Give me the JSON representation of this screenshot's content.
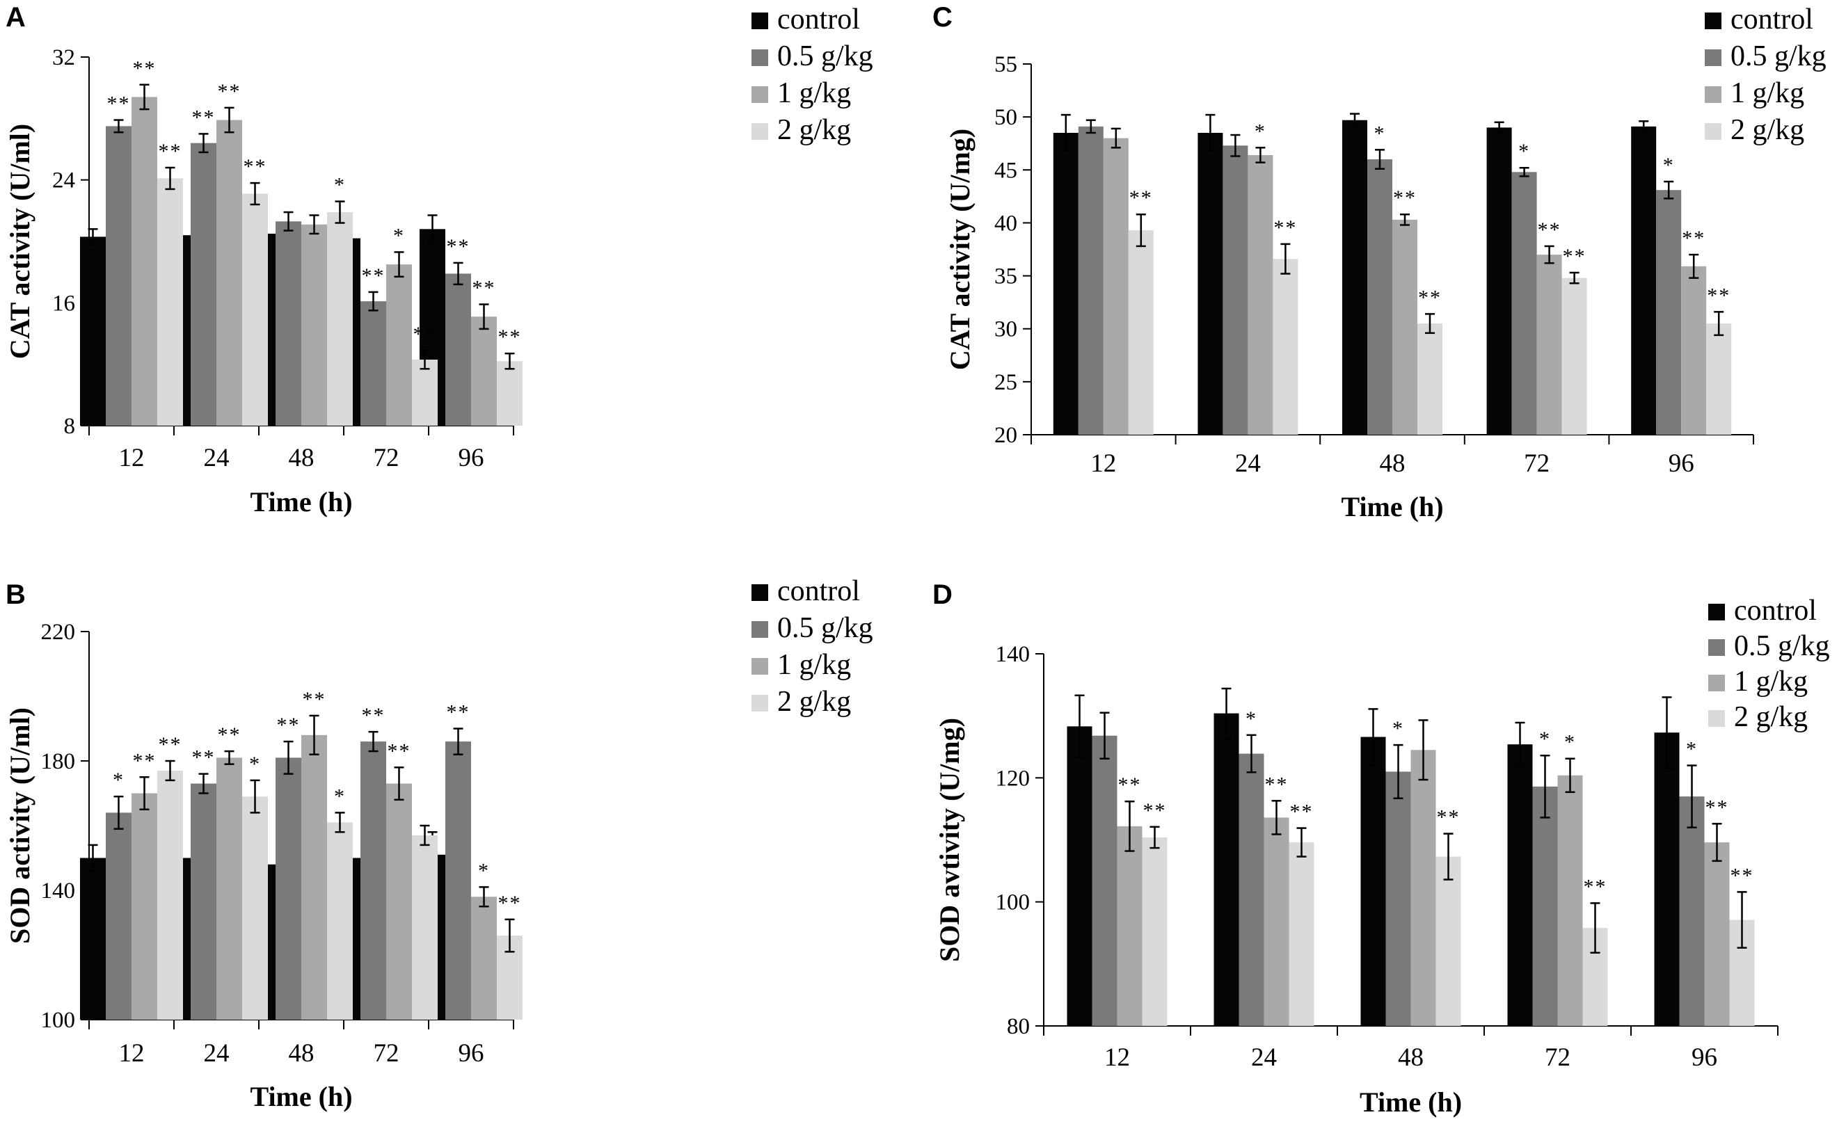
{
  "figure": {
    "colors": [
      "#050505",
      "#7a7a7a",
      "#a9a9a9",
      "#dadada"
    ],
    "legend": [
      "control",
      "0.5 g/kg",
      "1 g/kg",
      "2 g/kg"
    ]
  },
  "chart_data": [
    {
      "id": "A",
      "type": "bar",
      "title": "",
      "letter": "A",
      "xlabel": "Time (h)",
      "ylabel": "CAT activity (U/ml)",
      "ylim": [
        8,
        32
      ],
      "yticks": [
        8,
        16,
        24,
        32
      ],
      "categories": [
        "12",
        "24",
        "48",
        "72",
        "96"
      ],
      "legend_position": "top-right",
      "series": [
        {
          "name": "control",
          "values": [
            20.3,
            20.4,
            20.5,
            20.2,
            20.8
          ],
          "errors": [
            0.5,
            0.5,
            0.7,
            0.5,
            0.9
          ],
          "sig": [
            "",
            "",
            "",
            "",
            ""
          ]
        },
        {
          "name": "0.5 g/kg",
          "values": [
            27.5,
            26.4,
            21.3,
            16.1,
            17.9
          ],
          "errors": [
            0.4,
            0.6,
            0.6,
            0.6,
            0.7
          ],
          "sig": [
            "**",
            "**",
            "",
            "**",
            "**"
          ]
        },
        {
          "name": "1 g/kg",
          "values": [
            29.4,
            27.9,
            21.1,
            18.5,
            15.1
          ],
          "errors": [
            0.8,
            0.8,
            0.6,
            0.8,
            0.8
          ],
          "sig": [
            "**",
            "**",
            "",
            "*",
            "**"
          ]
        },
        {
          "name": "2 g/kg",
          "values": [
            24.1,
            23.1,
            21.9,
            12.3,
            12.2
          ],
          "errors": [
            0.7,
            0.7,
            0.7,
            0.6,
            0.5
          ],
          "sig": [
            "**",
            "**",
            "*",
            "**",
            "**"
          ]
        }
      ]
    },
    {
      "id": "B",
      "type": "bar",
      "title": "",
      "letter": "B",
      "xlabel": "Time (h)",
      "ylabel": "SOD activity (U/ml)",
      "ylim": [
        100,
        220
      ],
      "yticks": [
        100,
        140,
        180,
        220
      ],
      "categories": [
        "12",
        "24",
        "48",
        "72",
        "96"
      ],
      "legend_position": "top-right",
      "series": [
        {
          "name": "control",
          "values": [
            150,
            150,
            148,
            150,
            151
          ],
          "errors": [
            4,
            5,
            6,
            6,
            7
          ],
          "sig": [
            "",
            "",
            "",
            "",
            ""
          ]
        },
        {
          "name": "0.5 g/kg",
          "values": [
            164,
            173,
            181,
            186,
            186
          ],
          "errors": [
            5,
            3,
            5,
            3,
            4
          ],
          "sig": [
            "*",
            "**",
            "**",
            "**",
            "**"
          ]
        },
        {
          "name": "1 g/kg",
          "values": [
            170,
            181,
            188,
            173,
            138
          ],
          "errors": [
            5,
            2,
            6,
            5,
            3
          ],
          "sig": [
            "**",
            "**",
            "**",
            "**",
            "*"
          ]
        },
        {
          "name": "2 g/kg",
          "values": [
            177,
            169,
            161,
            157,
            126
          ],
          "errors": [
            3,
            5,
            3,
            3,
            5
          ],
          "sig": [
            "**",
            "*",
            "*",
            "",
            "**"
          ]
        }
      ]
    },
    {
      "id": "C",
      "type": "bar",
      "title": "",
      "letter": "C",
      "xlabel": "Time (h)",
      "ylabel": "CAT  activity  (U/mg)",
      "ylim": [
        20,
        55
      ],
      "yticks": [
        20,
        25,
        30,
        35,
        40,
        45,
        50,
        55
      ],
      "categories": [
        "12",
        "24",
        "48",
        "72",
        "96"
      ],
      "legend_position": "top-right",
      "series": [
        {
          "name": "control",
          "values": [
            48.5,
            48.5,
            49.7,
            49.0,
            49.1
          ],
          "errors": [
            1.7,
            1.7,
            0.6,
            0.5,
            0.5
          ],
          "sig": [
            "",
            "",
            "",
            "",
            ""
          ]
        },
        {
          "name": "0.5 g/kg",
          "values": [
            49.1,
            47.3,
            46.0,
            44.8,
            43.1
          ],
          "errors": [
            0.6,
            1.0,
            0.9,
            0.4,
            0.8
          ],
          "sig": [
            "",
            "",
            "*",
            "*",
            "*"
          ]
        },
        {
          "name": "1 g/kg",
          "values": [
            48.0,
            46.4,
            40.3,
            37.0,
            35.9
          ],
          "errors": [
            0.9,
            0.7,
            0.5,
            0.8,
            1.1
          ],
          "sig": [
            "",
            "*",
            "**",
            "**",
            "**"
          ]
        },
        {
          "name": "2 g/kg",
          "values": [
            39.3,
            36.6,
            30.5,
            34.8,
            30.5
          ],
          "errors": [
            1.5,
            1.4,
            0.9,
            0.5,
            1.1
          ],
          "sig": [
            "**",
            "**",
            "**",
            "**",
            "**"
          ]
        }
      ]
    },
    {
      "id": "D",
      "type": "bar",
      "title": "",
      "letter": "D",
      "xlabel": "Time (h)",
      "ylabel": "SOD avtivity (U/mg)",
      "ylim": [
        80,
        140
      ],
      "yticks": [
        80,
        100,
        120,
        140
      ],
      "categories": [
        "12",
        "24",
        "48",
        "72",
        "96"
      ],
      "legend_position": "top-right",
      "series": [
        {
          "name": "control",
          "values": [
            128.3,
            130.4,
            126.6,
            125.4,
            127.3
          ],
          "errors": [
            5.0,
            4.0,
            4.5,
            3.5,
            5.7
          ],
          "sig": [
            "",
            "",
            "",
            "",
            ""
          ]
        },
        {
          "name": "0.5 g/kg",
          "values": [
            126.8,
            123.9,
            121.0,
            118.6,
            117.0
          ],
          "errors": [
            3.7,
            3.0,
            4.3,
            5.0,
            5.0
          ],
          "sig": [
            "",
            "*",
            "*",
            "*",
            "*"
          ]
        },
        {
          "name": "1 g/kg",
          "values": [
            112.2,
            113.6,
            124.5,
            120.4,
            109.6
          ],
          "errors": [
            4.0,
            2.7,
            4.8,
            2.7,
            3.0
          ],
          "sig": [
            "**",
            "**",
            "",
            "*",
            "**"
          ]
        },
        {
          "name": "2 g/kg",
          "values": [
            110.4,
            109.6,
            107.3,
            95.8,
            97.1
          ],
          "errors": [
            1.7,
            2.3,
            3.7,
            4.0,
            4.5
          ],
          "sig": [
            "**",
            "**",
            "**",
            "**",
            "**"
          ]
        }
      ]
    }
  ]
}
